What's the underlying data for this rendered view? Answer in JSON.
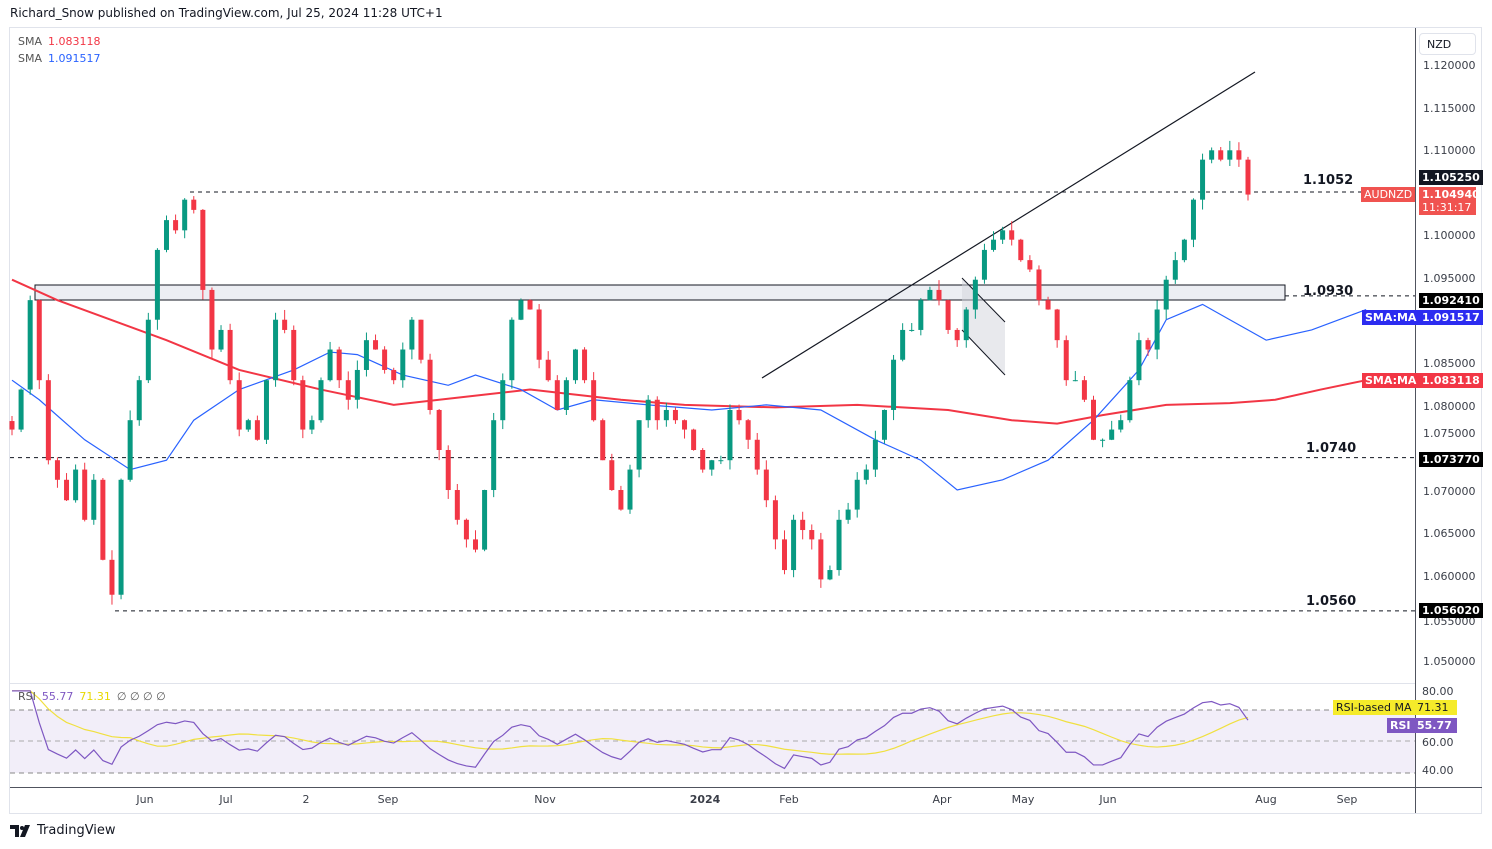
{
  "header": {
    "publisher": "Richard_Snow published on TradingView.com, Jul 25, 2024 11:28 UTC+1"
  },
  "legend": {
    "sma1_label": "SMA",
    "sma1_value": "1.083118",
    "sma2_label": "SMA",
    "sma2_value": "1.091517",
    "rsi_label": "RSI",
    "rsi_value": "55.77",
    "rsi_ma_value": "71.31",
    "rsi_extra": "∅ ∅ ∅ ∅"
  },
  "currency_button": "NZD",
  "branding": "TradingView",
  "colors": {
    "up": "#089981",
    "down": "#f23645",
    "sma200": "#f23645",
    "sma50": "#2962ff",
    "rsi": "#7e57c2",
    "rsi_ma": "#f0e040"
  },
  "price_axis": {
    "ticks": [
      "1.120000",
      "1.115000",
      "1.110000",
      "1.100000",
      "1.095000",
      "1.085000",
      "1.080000",
      "1.075000",
      "1.070000",
      "1.065000",
      "1.060000",
      "1.055000",
      "1.050000"
    ],
    "tick_values": [
      1.12,
      1.115,
      1.11,
      1.1,
      1.095,
      1.085,
      1.08,
      1.075,
      1.07,
      1.065,
      1.06,
      1.055,
      1.05
    ]
  },
  "badges": {
    "hi_level": "1.105250",
    "symbol": "AUDNZD",
    "last_price": "1.104940",
    "countdown": "11:31:17",
    "lvl_0930": "1.092410",
    "sma_ma_label": "SMA:MA",
    "sma50_val": "1.091517",
    "sma200_val": "1.083118",
    "lvl_0740": "1.073770",
    "lvl_0560": "1.056020",
    "rsi_ma_label": "RSI-based MA",
    "rsi_ma_val": "71.31",
    "rsi_label": "RSI",
    "rsi_val": "55.77"
  },
  "rsi_axis": {
    "ticks": [
      "80.00",
      "60.00",
      "40.00"
    ]
  },
  "levels": [
    {
      "label": "1.1052",
      "value": 1.1052
    },
    {
      "label": "1.0930",
      "value": 1.093
    },
    {
      "label": "1.0740",
      "value": 1.074
    },
    {
      "label": "1.0560",
      "value": 1.056
    }
  ],
  "time_axis": [
    "Jun",
    "Jul",
    "2",
    "Sep",
    "Nov",
    "2024",
    "Feb",
    "Apr",
    "May",
    "Jun",
    "Aug",
    "Sep"
  ],
  "chart_data": {
    "type": "candlestick",
    "symbol": "AUDNZD",
    "timeframe": "1D",
    "ylim": [
      1.05,
      1.12
    ],
    "rsi_ylim": [
      25,
      85
    ],
    "closes": [
      1.0773,
      1.082,
      1.0925,
      1.0831,
      1.0737,
      1.0714,
      1.069,
      1.0726,
      1.0667,
      1.0714,
      1.062,
      1.0579,
      1.0714,
      1.0784,
      1.0831,
      1.0902,
      1.0984,
      1.1019,
      1.1007,
      1.1043,
      1.1031,
      1.0937,
      1.0867,
      1.089,
      1.0831,
      1.0773,
      1.0784,
      1.0761,
      1.0831,
      1.0902,
      1.089,
      1.0831,
      1.0773,
      1.0784,
      1.0831,
      1.0867,
      1.0831,
      1.0808,
      1.0843,
      1.0878,
      1.0867,
      1.0843,
      1.0831,
      1.0867,
      1.0902,
      1.0855,
      1.0796,
      1.0749,
      1.0702,
      1.0667,
      1.0644,
      1.0632,
      1.0702,
      1.0784,
      1.0831,
      1.0902,
      1.0925,
      1.0914,
      1.0855,
      1.0831,
      1.0796,
      1.0831,
      1.0867,
      1.0831,
      1.0784,
      1.0737,
      1.0702,
      1.0679,
      1.0726,
      1.0784,
      1.0808,
      1.0784,
      1.0796,
      1.0784,
      1.0773,
      1.0749,
      1.0726,
      1.0737,
      1.0737,
      1.0796,
      1.0784,
      1.0761,
      1.0726,
      1.069,
      1.0644,
      1.0608,
      1.0667,
      1.0655,
      1.0644,
      1.0597,
      1.0608,
      1.0667,
      1.0679,
      1.0714,
      1.0726,
      1.0761,
      1.0796,
      1.0855,
      1.089,
      1.089,
      1.0925,
      1.0937,
      1.0925,
      1.089,
      1.0878,
      1.0914,
      1.0949,
      1.0984,
      1.0996,
      1.1007,
      1.0996,
      1.0972,
      1.0961,
      1.0925,
      1.0914,
      1.0878,
      1.0831,
      1.0831,
      1.0808,
      1.0761,
      1.0761,
      1.0773,
      1.0784,
      1.0831,
      1.0878,
      1.0867,
      1.0914,
      1.0949,
      1.0972,
      1.0996,
      1.1043,
      1.109,
      1.1101,
      1.109,
      1.1101,
      1.109,
      1.1049
    ],
    "sma200": [
      [
        0,
        1.0949
      ],
      [
        5,
        1.0925
      ],
      [
        17,
        1.0878
      ],
      [
        25,
        1.0843
      ],
      [
        34,
        1.082
      ],
      [
        42,
        1.0802
      ],
      [
        52,
        1.0814
      ],
      [
        57,
        1.082
      ],
      [
        67,
        1.0808
      ],
      [
        74,
        1.0802
      ],
      [
        84,
        1.0799
      ],
      [
        93,
        1.0802
      ],
      [
        103,
        1.0796
      ],
      [
        110,
        1.0784
      ],
      [
        115,
        1.078
      ],
      [
        120,
        1.079
      ],
      [
        127,
        1.0802
      ],
      [
        134,
        1.0804
      ],
      [
        139,
        1.0808
      ],
      [
        144,
        1.082
      ],
      [
        149,
        1.0831
      ]
    ],
    "sma50": [
      [
        0,
        1.0831
      ],
      [
        3,
        1.0808
      ],
      [
        8,
        1.0761
      ],
      [
        13,
        1.0726
      ],
      [
        17,
        1.0737
      ],
      [
        20,
        1.0784
      ],
      [
        25,
        1.082
      ],
      [
        31,
        1.0843
      ],
      [
        35,
        1.0864
      ],
      [
        38,
        1.0861
      ],
      [
        43,
        1.0837
      ],
      [
        48,
        1.0825
      ],
      [
        51,
        1.0837
      ],
      [
        56,
        1.082
      ],
      [
        60,
        1.0796
      ],
      [
        64,
        1.0808
      ],
      [
        70,
        1.0802
      ],
      [
        77,
        1.0796
      ],
      [
        83,
        1.0802
      ],
      [
        89,
        1.0796
      ],
      [
        95,
        1.0761
      ],
      [
        100,
        1.0737
      ],
      [
        104,
        1.0702
      ],
      [
        109,
        1.0714
      ],
      [
        114,
        1.0737
      ],
      [
        119,
        1.0784
      ],
      [
        124,
        1.0843
      ],
      [
        127,
        1.0902
      ],
      [
        131,
        1.092
      ],
      [
        134,
        1.0902
      ],
      [
        138,
        1.0878
      ],
      [
        143,
        1.089
      ],
      [
        149,
        1.0914
      ]
    ],
    "rsi_period": 14,
    "rsi_ma_period": 14
  }
}
